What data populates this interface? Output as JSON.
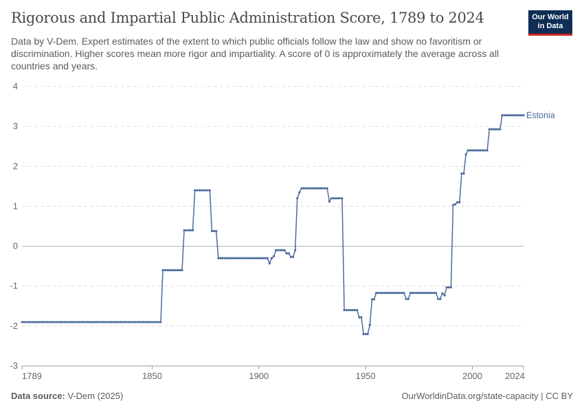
{
  "header": {
    "title": "Rigorous and Impartial Public Administration Score, 1789 to 2024",
    "subtitle": "Data by V-Dem. Expert estimates of the extent to which public officials follow the law and show no favoritism or discrimination. Higher scores mean more rigor and impartiality. A score of 0 is approximately the average across all countries and years.",
    "logo": "Our World in Data"
  },
  "footer": {
    "source_label": "Data source:",
    "source": "V-Dem (2025)",
    "url": "OurWorldinData.org/state-capacity | CC BY"
  },
  "colors": {
    "series": "#4c6a9c",
    "grid": "#dddddd",
    "zero": "#b0b0b0"
  },
  "chart_data": {
    "type": "line",
    "title": "Rigorous and Impartial Public Administration Score, 1789 to 2024",
    "xlim": [
      1789,
      2024
    ],
    "ylim": [
      -3,
      4
    ],
    "xticks": [
      1789,
      1850,
      1900,
      1950,
      2000,
      2024
    ],
    "yticks": [
      -3,
      -2,
      -1,
      0,
      1,
      2,
      3,
      4
    ],
    "grid": true,
    "series": [
      {
        "name": "Estonia",
        "segments": [
          [
            1789,
            1854,
            -1.9
          ],
          [
            1855,
            1864,
            -0.6
          ],
          [
            1865,
            1869,
            0.4
          ],
          [
            1870,
            1877,
            1.4
          ],
          [
            1878,
            1880,
            0.38
          ],
          [
            1881,
            1904,
            -0.3
          ],
          [
            1905,
            1905,
            -0.43
          ],
          [
            1906,
            1906,
            -0.3
          ],
          [
            1907,
            1907,
            -0.25
          ],
          [
            1908,
            1912,
            -0.1
          ],
          [
            1913,
            1914,
            -0.18
          ],
          [
            1915,
            1916,
            -0.27
          ],
          [
            1917,
            1917,
            -0.1
          ],
          [
            1918,
            1918,
            1.2
          ],
          [
            1919,
            1919,
            1.35
          ],
          [
            1920,
            1932,
            1.45
          ],
          [
            1933,
            1933,
            1.12
          ],
          [
            1934,
            1939,
            1.2
          ],
          [
            1940,
            1946,
            -1.6
          ],
          [
            1947,
            1948,
            -1.78
          ],
          [
            1949,
            1951,
            -2.2
          ],
          [
            1952,
            1952,
            -1.97
          ],
          [
            1953,
            1954,
            -1.33
          ],
          [
            1955,
            1968,
            -1.17
          ],
          [
            1969,
            1970,
            -1.32
          ],
          [
            1971,
            1983,
            -1.17
          ],
          [
            1984,
            1985,
            -1.32
          ],
          [
            1986,
            1986,
            -1.18
          ],
          [
            1987,
            1987,
            -1.23
          ],
          [
            1988,
            1990,
            -1.03
          ],
          [
            1991,
            1991,
            1.03
          ],
          [
            1992,
            1992,
            1.05
          ],
          [
            1993,
            1994,
            1.1
          ],
          [
            1995,
            1996,
            1.82
          ],
          [
            1997,
            1997,
            2.3
          ],
          [
            1998,
            2007,
            2.4
          ],
          [
            2008,
            2013,
            2.93
          ],
          [
            2014,
            2024,
            3.28
          ]
        ]
      }
    ]
  }
}
